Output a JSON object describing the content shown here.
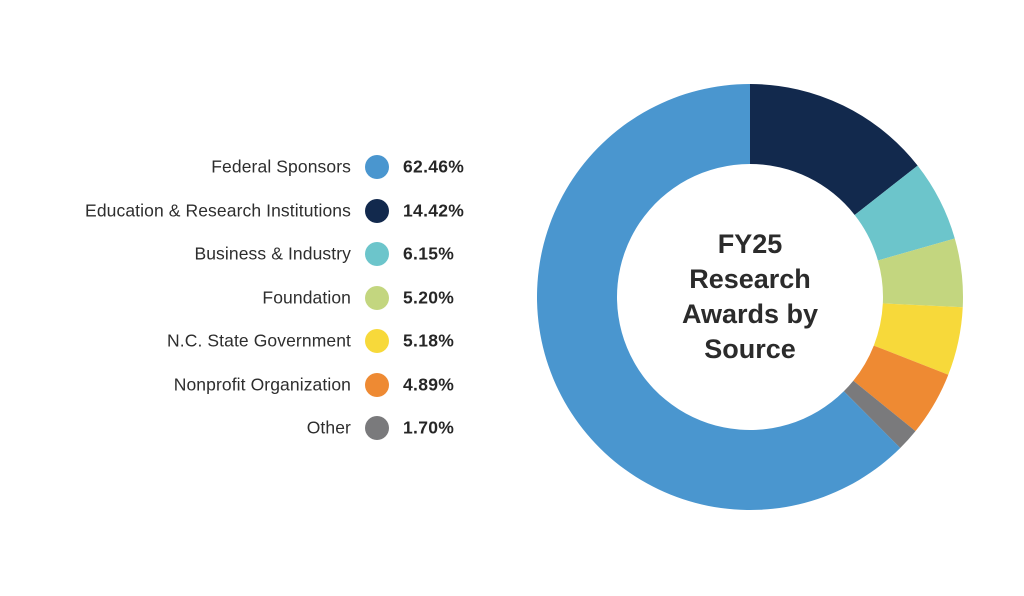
{
  "chart_data": {
    "type": "pie",
    "subtype": "donut",
    "title": "FY25 Research Awards by Source",
    "title_lines": [
      "FY25",
      "Research",
      "Awards by",
      "Source"
    ],
    "categories": [
      "Federal Sponsors",
      "Education & Research Institutions",
      "Business & Industry",
      "Foundation",
      "N.C. State Government",
      "Nonprofit Organization",
      "Other"
    ],
    "values": [
      62.46,
      14.42,
      6.15,
      5.2,
      5.18,
      4.89,
      1.7
    ],
    "value_labels": [
      "62.46%",
      "14.42%",
      "6.15%",
      "5.20%",
      "5.18%",
      "4.89%",
      "1.70%"
    ],
    "colors": [
      "#4A96CF",
      "#12294D",
      "#6CC5CB",
      "#C3D67F",
      "#F7D93A",
      "#EE8A33",
      "#7A7A7C"
    ],
    "unit": "%",
    "legend_position": "left",
    "slice_order_clockwise_from_top": [
      "Education & Research Institutions",
      "Business & Industry",
      "Foundation",
      "N.C. State Government",
      "Nonprofit Organization",
      "Other",
      "Federal Sponsors"
    ],
    "grid": false
  },
  "legend": {
    "items": [
      {
        "label": "Federal Sponsors",
        "value": "62.46%",
        "color": "#4A96CF"
      },
      {
        "label": "Education & Research Institutions",
        "value": "14.42%",
        "color": "#12294D"
      },
      {
        "label": "Business & Industry",
        "value": "6.15%",
        "color": "#6CC5CB"
      },
      {
        "label": "Foundation",
        "value": "5.20%",
        "color": "#C3D67F"
      },
      {
        "label": "N.C. State Government",
        "value": "5.18%",
        "color": "#F7D93A"
      },
      {
        "label": "Nonprofit Organization",
        "value": "4.89%",
        "color": "#EE8A33"
      },
      {
        "label": "Other",
        "value": "1.70%",
        "color": "#7A7A7C"
      }
    ]
  },
  "center": {
    "line1": "FY25",
    "line2": "Research",
    "line3": "Awards by",
    "line4": "Source"
  }
}
